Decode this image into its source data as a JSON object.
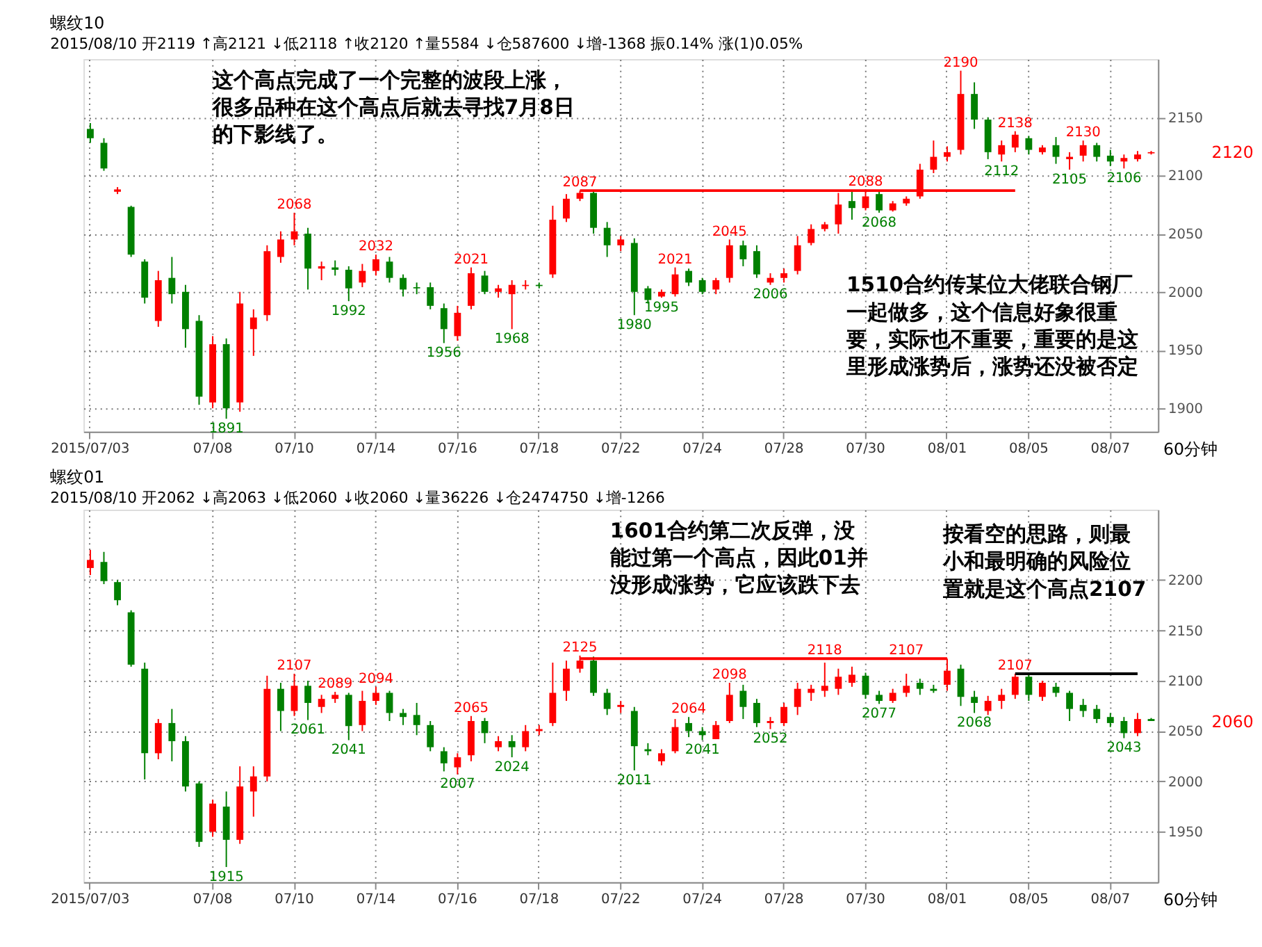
{
  "chart_data": [
    {
      "type": "candlestick",
      "title": "螺纹10",
      "subtitle": "2015/08/10 开2119 ↑高2121 ↓低2118 ↑收2120 ↑量5584 ↓仓587600 ↓增-1368 振0.14% 涨(1)0.05%",
      "categories": [
        "2015/07/03",
        null,
        null,
        null,
        null,
        null,
        null,
        null,
        null,
        "07/08",
        null,
        null,
        null,
        null,
        null,
        "07/10",
        null,
        null,
        null,
        null,
        null,
        "07/14",
        null,
        null,
        null,
        null,
        null,
        "07/16",
        null,
        null,
        null,
        null,
        null,
        "07/18",
        null,
        null,
        null,
        null,
        null,
        "07/22",
        null,
        null,
        null,
        null,
        null,
        "07/24",
        null,
        null,
        null,
        null,
        null,
        "07/28",
        null,
        null,
        null,
        null,
        null,
        "07/30",
        null,
        null,
        null,
        null,
        null,
        "08/01",
        null,
        null,
        null,
        null,
        null,
        "08/05",
        null,
        null,
        null,
        null,
        null,
        "08/07",
        null,
        null,
        null
      ],
      "ohlc": [
        [
          2140,
          2145,
          2128,
          2132
        ],
        [
          2128,
          2132,
          2104,
          2106
        ],
        [
          2086,
          2090,
          2084,
          2088
        ],
        [
          2073,
          2074,
          2030,
          2032
        ],
        [
          2026,
          2028,
          1990,
          1995
        ],
        [
          1975,
          2018,
          1970,
          2010
        ],
        [
          2012,
          2030,
          1990,
          1998
        ],
        [
          2000,
          2006,
          1952,
          1968
        ],
        [
          1975,
          1980,
          1903,
          1910
        ],
        [
          1905,
          1962,
          1900,
          1955
        ],
        [
          1955,
          1960,
          1891,
          1900
        ],
        [
          1905,
          2000,
          1897,
          1990
        ],
        [
          1968,
          1985,
          1945,
          1978
        ],
        [
          1980,
          2040,
          1975,
          2035
        ],
        [
          2030,
          2052,
          2025,
          2045
        ],
        [
          2045,
          2068,
          2040,
          2052
        ],
        [
          2050,
          2055,
          2002,
          2020
        ],
        [
          2020,
          2026,
          2010,
          2022
        ],
        [
          2021,
          2027,
          2014,
          2019
        ],
        [
          2019,
          2022,
          1992,
          2003
        ],
        [
          2008,
          2024,
          2004,
          2018
        ],
        [
          2018,
          2032,
          2014,
          2028
        ],
        [
          2026,
          2030,
          2008,
          2012
        ],
        [
          2012,
          2015,
          1996,
          2002
        ],
        [
          2004,
          2008,
          1998,
          2003
        ],
        [
          2004,
          2008,
          1985,
          1988
        ],
        [
          1986,
          1990,
          1956,
          1968
        ],
        [
          1962,
          1988,
          1958,
          1982
        ],
        [
          1988,
          2021,
          1985,
          2016
        ],
        [
          2014,
          2018,
          1998,
          2000
        ],
        [
          2000,
          2006,
          1995,
          2003
        ],
        [
          1998,
          2010,
          1968,
          2006
        ],
        [
          2005,
          2010,
          2002,
          2006
        ],
        [
          2006,
          2008,
          2003,
          2005
        ],
        [
          2015,
          2074,
          2012,
          2062
        ],
        [
          2063,
          2084,
          2060,
          2080
        ],
        [
          2080,
          2087,
          2078,
          2085
        ],
        [
          2085,
          2086,
          2050,
          2055
        ],
        [
          2055,
          2060,
          2030,
          2040
        ],
        [
          2040,
          2048,
          2035,
          2045
        ],
        [
          2042,
          2046,
          1980,
          2000
        ],
        [
          2003,
          2005,
          1990,
          1993
        ],
        [
          1996,
          2002,
          1995,
          2000
        ],
        [
          1998,
          2021,
          1996,
          2015
        ],
        [
          2018,
          2020,
          2005,
          2008
        ],
        [
          2010,
          2012,
          1998,
          2000
        ],
        [
          2002,
          2012,
          1998,
          2010
        ],
        [
          2012,
          2045,
          2008,
          2040
        ],
        [
          2040,
          2044,
          2022,
          2028
        ],
        [
          2035,
          2040,
          2012,
          2015
        ],
        [
          2008,
          2016,
          2006,
          2012
        ],
        [
          2012,
          2020,
          2008,
          2016
        ],
        [
          2018,
          2048,
          2015,
          2040
        ],
        [
          2042,
          2058,
          2040,
          2054
        ],
        [
          2054,
          2060,
          2052,
          2058
        ],
        [
          2058,
          2085,
          2050,
          2075
        ],
        [
          2078,
          2086,
          2062,
          2072
        ],
        [
          2072,
          2088,
          2070,
          2082
        ],
        [
          2084,
          2086,
          2068,
          2070
        ],
        [
          2070,
          2078,
          2069,
          2076
        ],
        [
          2076,
          2082,
          2074,
          2080
        ],
        [
          2082,
          2110,
          2080,
          2105
        ],
        [
          2105,
          2130,
          2102,
          2116
        ],
        [
          2116,
          2125,
          2112,
          2120
        ],
        [
          2122,
          2190,
          2118,
          2170
        ],
        [
          2170,
          2180,
          2140,
          2148
        ],
        [
          2148,
          2150,
          2114,
          2120
        ],
        [
          2118,
          2130,
          2112,
          2126
        ],
        [
          2124,
          2138,
          2120,
          2135
        ],
        [
          2132,
          2134,
          2118,
          2122
        ],
        [
          2120,
          2126,
          2118,
          2124
        ],
        [
          2126,
          2133,
          2110,
          2116
        ],
        [
          2114,
          2120,
          2105,
          2116
        ],
        [
          2117,
          2130,
          2112,
          2126
        ],
        [
          2126,
          2128,
          2112,
          2116
        ],
        [
          2117,
          2122,
          2108,
          2112
        ],
        [
          2112,
          2118,
          2106,
          2115
        ],
        [
          2114,
          2121,
          2112,
          2118
        ],
        [
          2119,
          2121,
          2118,
          2120
        ]
      ],
      "value_labels": [
        null,
        null,
        null,
        null,
        null,
        null,
        null,
        null,
        null,
        null,
        "1891",
        null,
        null,
        null,
        null,
        "2068",
        null,
        null,
        null,
        "1992",
        null,
        "2032",
        null,
        null,
        null,
        null,
        "1956",
        null,
        "2021",
        null,
        null,
        "1968",
        null,
        null,
        null,
        null,
        "2087",
        null,
        null,
        null,
        "1980",
        null,
        "1995",
        "2021",
        null,
        null,
        null,
        "2045",
        null,
        null,
        "2006",
        null,
        null,
        null,
        null,
        null,
        null,
        "2088",
        "2068",
        null,
        null,
        null,
        null,
        null,
        "2190",
        null,
        null,
        "2112",
        "2138",
        null,
        null,
        null,
        "2105",
        "2130",
        null,
        null,
        "2106",
        null,
        null
      ],
      "series": [
        {
          "type": "line",
          "color": "#ff0000",
          "values": [
            null,
            null,
            null,
            null,
            null,
            null,
            null,
            null,
            null,
            null,
            null,
            null,
            null,
            null,
            null,
            null,
            null,
            null,
            null,
            null,
            null,
            null,
            null,
            null,
            null,
            null,
            null,
            null,
            null,
            null,
            null,
            null,
            null,
            null,
            null,
            null,
            2087,
            2087,
            2087,
            2087,
            2087,
            2087,
            2087,
            2087,
            2087,
            2087,
            2087,
            2087,
            2087,
            2087,
            2087,
            2087,
            2087,
            2087,
            2087,
            2087,
            2087,
            2087,
            2087,
            2087,
            2087,
            2087,
            2087,
            2087,
            2087,
            2087,
            2087,
            2087,
            2087,
            null,
            null,
            null,
            null,
            null,
            null,
            null,
            null,
            null,
            null
          ]
        }
      ],
      "ylim": [
        1880,
        2200
      ],
      "yticks": [
        1900,
        1950,
        2000,
        2050,
        2100,
        2150
      ],
      "grid": true,
      "annotations": [
        "这个高点完成了一个完整的波段上涨，很多品种在这个高点后就去寻找7月8日的下影线了。",
        "1510合约传某位大佬联合钢厂一起做多，这个信息好象很重要，实际也不重要，重要的是这里形成涨势后，涨势还没被否定",
        "2120",
        "60分钟"
      ]
    },
    {
      "type": "candlestick",
      "title": "螺纹01",
      "subtitle": "2015/08/10 开2062 ↓高2063 ↓低2060 ↓收2060 ↓量36226 ↓仓2474750 ↓增-1266",
      "categories": [
        "2015/07/03",
        null,
        null,
        null,
        null,
        null,
        null,
        null,
        null,
        "07/08",
        null,
        null,
        null,
        null,
        null,
        "07/10",
        null,
        null,
        null,
        null,
        null,
        "07/14",
        null,
        null,
        null,
        null,
        null,
        "07/16",
        null,
        null,
        null,
        null,
        null,
        "07/18",
        null,
        null,
        null,
        null,
        null,
        "07/22",
        null,
        null,
        null,
        null,
        null,
        "07/24",
        null,
        null,
        null,
        null,
        null,
        "07/28",
        null,
        null,
        null,
        null,
        null,
        "07/30",
        null,
        null,
        null,
        null,
        null,
        "08/01",
        null,
        null,
        null,
        null,
        null,
        "08/05",
        null,
        null,
        null,
        null,
        null,
        "08/07",
        null,
        null,
        null
      ],
      "ohlc": [
        [
          2212,
          2230,
          2205,
          2220
        ],
        [
          2218,
          2228,
          2196,
          2199
        ],
        [
          2198,
          2200,
          2175,
          2180
        ],
        [
          2168,
          2170,
          2114,
          2116
        ],
        [
          2112,
          2118,
          2002,
          2028
        ],
        [
          2028,
          2062,
          2022,
          2058
        ],
        [
          2058,
          2072,
          2020,
          2040
        ],
        [
          2040,
          2045,
          1990,
          1995
        ],
        [
          1998,
          2000,
          1935,
          1940
        ],
        [
          1950,
          1982,
          1945,
          1978
        ],
        [
          1975,
          1990,
          1915,
          1942
        ],
        [
          1942,
          2015,
          1938,
          1995
        ],
        [
          1990,
          2015,
          1965,
          2005
        ],
        [
          2005,
          2105,
          2000,
          2092
        ],
        [
          2092,
          2098,
          2050,
          2070
        ],
        [
          2070,
          2107,
          2065,
          2095
        ],
        [
          2095,
          2100,
          2061,
          2078
        ],
        [
          2074,
          2086,
          2068,
          2082
        ],
        [
          2082,
          2089,
          2078,
          2086
        ],
        [
          2086,
          2088,
          2041,
          2055
        ],
        [
          2056,
          2090,
          2050,
          2080
        ],
        [
          2080,
          2094,
          2076,
          2088
        ],
        [
          2088,
          2090,
          2060,
          2068
        ],
        [
          2068,
          2072,
          2056,
          2064
        ],
        [
          2066,
          2078,
          2046,
          2056
        ],
        [
          2056,
          2060,
          2030,
          2034
        ],
        [
          2030,
          2034,
          2010,
          2018
        ],
        [
          2014,
          2028,
          2007,
          2024
        ],
        [
          2026,
          2065,
          2020,
          2060
        ],
        [
          2060,
          2063,
          2038,
          2048
        ],
        [
          2034,
          2045,
          2030,
          2040
        ],
        [
          2040,
          2046,
          2024,
          2034
        ],
        [
          2034,
          2056,
          2030,
          2050
        ],
        [
          2050,
          2056,
          2046,
          2052
        ],
        [
          2058,
          2118,
          2055,
          2088
        ],
        [
          2090,
          2120,
          2080,
          2112
        ],
        [
          2112,
          2125,
          2108,
          2120
        ],
        [
          2120,
          2124,
          2085,
          2088
        ],
        [
          2088,
          2092,
          2066,
          2072
        ],
        [
          2074,
          2080,
          2068,
          2076
        ],
        [
          2070,
          2074,
          2011,
          2035
        ],
        [
          2032,
          2038,
          2026,
          2030
        ],
        [
          2020,
          2032,
          2016,
          2028
        ],
        [
          2030,
          2062,
          2028,
          2054
        ],
        [
          2058,
          2064,
          2044,
          2050
        ],
        [
          2050,
          2054,
          2041,
          2046
        ],
        [
          2042,
          2060,
          2042,
          2056
        ],
        [
          2060,
          2098,
          2058,
          2086
        ],
        [
          2090,
          2096,
          2062,
          2074
        ],
        [
          2078,
          2082,
          2054,
          2058
        ],
        [
          2058,
          2064,
          2052,
          2060
        ],
        [
          2058,
          2078,
          2055,
          2074
        ],
        [
          2074,
          2098,
          2066,
          2092
        ],
        [
          2088,
          2096,
          2080,
          2092
        ],
        [
          2090,
          2118,
          2084,
          2095
        ],
        [
          2092,
          2112,
          2086,
          2104
        ],
        [
          2098,
          2114,
          2094,
          2106
        ],
        [
          2105,
          2108,
          2082,
          2086
        ],
        [
          2086,
          2090,
          2077,
          2080
        ],
        [
          2080,
          2092,
          2078,
          2088
        ],
        [
          2088,
          2107,
          2084,
          2095
        ],
        [
          2098,
          2102,
          2086,
          2092
        ],
        [
          2092,
          2096,
          2088,
          2090
        ],
        [
          2096,
          2122,
          2090,
          2110
        ],
        [
          2112,
          2116,
          2075,
          2084
        ],
        [
          2084,
          2090,
          2068,
          2078
        ],
        [
          2070,
          2085,
          2066,
          2080
        ],
        [
          2080,
          2092,
          2072,
          2086
        ],
        [
          2086,
          2107,
          2082,
          2104
        ],
        [
          2104,
          2106,
          2080,
          2086
        ],
        [
          2084,
          2100,
          2080,
          2098
        ],
        [
          2094,
          2098,
          2084,
          2088
        ],
        [
          2088,
          2090,
          2060,
          2072
        ],
        [
          2076,
          2082,
          2064,
          2070
        ],
        [
          2072,
          2076,
          2058,
          2062
        ],
        [
          2064,
          2068,
          2054,
          2058
        ],
        [
          2060,
          2064,
          2043,
          2048
        ],
        [
          2048,
          2068,
          2045,
          2062
        ],
        [
          2062,
          2063,
          2060,
          2060
        ]
      ],
      "value_labels": [
        null,
        null,
        null,
        null,
        null,
        null,
        null,
        null,
        null,
        null,
        "1915",
        null,
        null,
        null,
        null,
        "2107",
        "2061",
        null,
        "2089",
        "2041",
        null,
        "2094",
        null,
        null,
        null,
        null,
        null,
        "2007",
        "2065",
        null,
        null,
        "2024",
        null,
        null,
        null,
        null,
        "2125",
        null,
        null,
        null,
        "2011",
        null,
        null,
        null,
        "2064",
        "2041",
        null,
        "2098",
        null,
        null,
        "2052",
        null,
        null,
        null,
        "2118",
        null,
        null,
        null,
        "2077",
        null,
        "2107",
        null,
        null,
        null,
        null,
        "2068",
        null,
        null,
        "2107",
        null,
        null,
        null,
        null,
        null,
        null,
        null,
        "2043",
        null,
        null
      ],
      "series": [
        {
          "type": "line",
          "color": "#ff0000",
          "values": [
            null,
            null,
            null,
            null,
            null,
            null,
            null,
            null,
            null,
            null,
            null,
            null,
            null,
            null,
            null,
            null,
            null,
            null,
            null,
            null,
            null,
            null,
            null,
            null,
            null,
            null,
            null,
            null,
            null,
            null,
            null,
            null,
            null,
            null,
            null,
            null,
            2122,
            2122,
            2122,
            2122,
            2122,
            2122,
            2122,
            2122,
            2122,
            2122,
            2122,
            2122,
            2122,
            2122,
            2122,
            2122,
            2122,
            2122,
            2122,
            2122,
            2122,
            2122,
            2122,
            2122,
            2122,
            2122,
            2122,
            2122,
            null,
            null,
            null,
            null,
            null,
            null,
            null,
            null,
            null,
            null,
            null,
            null,
            null,
            null,
            null
          ]
        },
        {
          "type": "line",
          "color": "#000000",
          "values": [
            null,
            null,
            null,
            null,
            null,
            null,
            null,
            null,
            null,
            null,
            null,
            null,
            null,
            null,
            null,
            null,
            null,
            null,
            null,
            null,
            null,
            null,
            null,
            null,
            null,
            null,
            null,
            null,
            null,
            null,
            null,
            null,
            null,
            null,
            null,
            null,
            null,
            null,
            null,
            null,
            null,
            null,
            null,
            null,
            null,
            null,
            null,
            null,
            null,
            null,
            null,
            null,
            null,
            null,
            null,
            null,
            null,
            null,
            null,
            null,
            null,
            null,
            null,
            null,
            null,
            null,
            null,
            null,
            2107,
            2107,
            2107,
            2107,
            2107,
            2107,
            2107,
            2107,
            2107,
            2107,
            null
          ]
        }
      ],
      "ylim": [
        1900,
        2270
      ],
      "yticks": [
        1950,
        2000,
        2050,
        2100,
        2150,
        2200
      ],
      "grid": true,
      "annotations": [
        "1601合约第二次反弹，没能过第一个高点，因此01并没形成涨势，它应该跌下去",
        "按看空的思路，则最小和最明确的风险位置就是这个高点2107",
        "2060",
        "60分钟"
      ]
    }
  ]
}
